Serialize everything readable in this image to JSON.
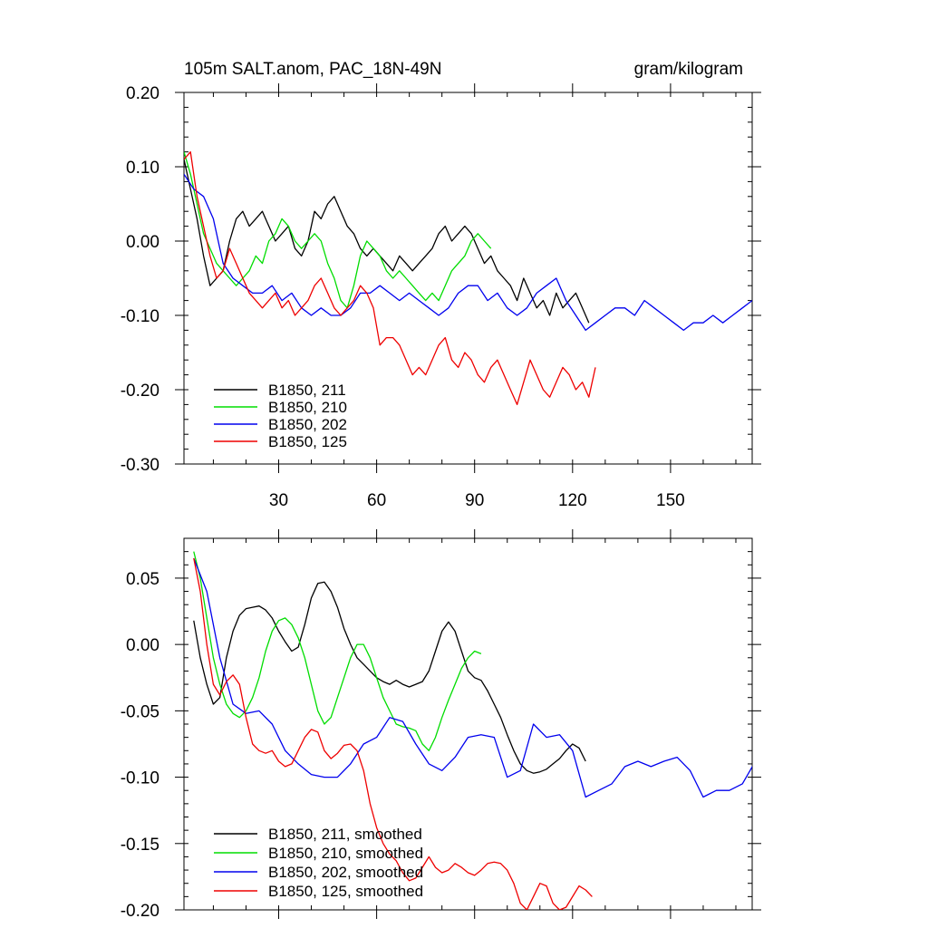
{
  "chart_data": [
    {
      "type": "line",
      "title_left": "105m SALT.anom, PAC_18N-49N",
      "title_right": "gram/kilogram",
      "xlim": [
        1,
        175
      ],
      "ylim": [
        -0.3,
        0.2
      ],
      "xticks": [
        30,
        60,
        90,
        120,
        150
      ],
      "xtick_labels": [
        "30",
        "60",
        "90",
        "120",
        "150"
      ],
      "yticks": [
        0.2,
        0.1,
        0.0,
        -0.1,
        -0.2,
        -0.3
      ],
      "ytick_labels": [
        "0.20",
        "0.10",
        "0.00",
        "-0.10",
        "-0.20",
        "-0.30"
      ],
      "legend_position": "bottom-left",
      "series": [
        {
          "name": "B1850, 211",
          "color": "#000000",
          "x": [
            1,
            3,
            5,
            7,
            9,
            11,
            13,
            15,
            17,
            19,
            21,
            23,
            25,
            27,
            29,
            31,
            33,
            35,
            37,
            39,
            41,
            43,
            45,
            47,
            49,
            51,
            53,
            55,
            57,
            59,
            61,
            63,
            65,
            67,
            69,
            71,
            73,
            75,
            77,
            79,
            81,
            83,
            85,
            87,
            89,
            91,
            93,
            95,
            97,
            99,
            101,
            103,
            105,
            107,
            109,
            111,
            113,
            115,
            117,
            119,
            121,
            123,
            125
          ],
          "y": [
            0.11,
            0.07,
            0.03,
            -0.02,
            -0.06,
            -0.05,
            -0.04,
            0.0,
            0.03,
            0.04,
            0.02,
            0.03,
            0.04,
            0.02,
            0.0,
            0.01,
            0.02,
            -0.01,
            -0.02,
            0.0,
            0.04,
            0.03,
            0.05,
            0.06,
            0.04,
            0.02,
            0.01,
            -0.01,
            -0.02,
            -0.01,
            -0.02,
            -0.03,
            -0.04,
            -0.02,
            -0.03,
            -0.04,
            -0.03,
            -0.02,
            -0.01,
            0.01,
            0.02,
            0.0,
            0.01,
            0.02,
            0.01,
            -0.01,
            -0.03,
            -0.02,
            -0.04,
            -0.05,
            -0.06,
            -0.08,
            -0.05,
            -0.07,
            -0.09,
            -0.08,
            -0.1,
            -0.07,
            -0.09,
            -0.08,
            -0.07,
            -0.09,
            -0.11
          ]
        },
        {
          "name": "B1850, 210",
          "color": "#00dd00",
          "x": [
            1,
            3,
            5,
            7,
            9,
            11,
            13,
            15,
            17,
            19,
            21,
            23,
            25,
            27,
            29,
            31,
            33,
            35,
            37,
            39,
            41,
            43,
            45,
            47,
            49,
            51,
            53,
            55,
            57,
            59,
            61,
            63,
            65,
            67,
            69,
            71,
            73,
            75,
            77,
            79,
            81,
            83,
            85,
            87,
            89,
            91,
            93,
            95
          ],
          "y": [
            0.12,
            0.09,
            0.05,
            0.01,
            -0.01,
            -0.03,
            -0.04,
            -0.05,
            -0.06,
            -0.05,
            -0.04,
            -0.02,
            -0.03,
            0.0,
            0.01,
            0.03,
            0.02,
            0.0,
            -0.01,
            0.0,
            0.01,
            0.0,
            -0.03,
            -0.05,
            -0.08,
            -0.09,
            -0.06,
            -0.02,
            0.0,
            -0.01,
            -0.02,
            -0.04,
            -0.05,
            -0.04,
            -0.05,
            -0.06,
            -0.07,
            -0.08,
            -0.07,
            -0.08,
            -0.06,
            -0.04,
            -0.03,
            -0.02,
            0.0,
            0.01,
            0.0,
            -0.01
          ]
        },
        {
          "name": "B1850, 202",
          "color": "#0000ee",
          "x": [
            1,
            4,
            7,
            10,
            13,
            16,
            19,
            22,
            25,
            28,
            31,
            34,
            37,
            40,
            43,
            46,
            49,
            52,
            55,
            58,
            61,
            64,
            67,
            70,
            73,
            76,
            79,
            82,
            85,
            88,
            91,
            94,
            97,
            100,
            103,
            106,
            109,
            112,
            115,
            118,
            121,
            124,
            127,
            130,
            133,
            136,
            139,
            142,
            145,
            148,
            151,
            154,
            157,
            160,
            163,
            166,
            169,
            172,
            175
          ],
          "y": [
            0.09,
            0.07,
            0.06,
            0.03,
            -0.03,
            -0.05,
            -0.06,
            -0.07,
            -0.07,
            -0.06,
            -0.08,
            -0.07,
            -0.09,
            -0.1,
            -0.09,
            -0.1,
            -0.1,
            -0.09,
            -0.07,
            -0.07,
            -0.06,
            -0.07,
            -0.08,
            -0.07,
            -0.08,
            -0.09,
            -0.1,
            -0.09,
            -0.07,
            -0.06,
            -0.06,
            -0.08,
            -0.07,
            -0.09,
            -0.1,
            -0.09,
            -0.07,
            -0.06,
            -0.05,
            -0.08,
            -0.1,
            -0.12,
            -0.11,
            -0.1,
            -0.09,
            -0.09,
            -0.1,
            -0.08,
            -0.09,
            -0.1,
            -0.11,
            -0.12,
            -0.11,
            -0.11,
            -0.1,
            -0.11,
            -0.1,
            -0.09,
            -0.08
          ]
        },
        {
          "name": "B1850, 125",
          "color": "#ee0000",
          "x": [
            1,
            3,
            5,
            7,
            9,
            11,
            13,
            15,
            17,
            19,
            21,
            23,
            25,
            27,
            29,
            31,
            33,
            35,
            37,
            39,
            41,
            43,
            45,
            47,
            49,
            51,
            53,
            55,
            57,
            59,
            61,
            63,
            65,
            67,
            69,
            71,
            73,
            75,
            77,
            79,
            81,
            83,
            85,
            87,
            89,
            91,
            93,
            95,
            97,
            99,
            101,
            103,
            105,
            107,
            109,
            111,
            113,
            115,
            117,
            119,
            121,
            123,
            125,
            127
          ],
          "y": [
            0.11,
            0.12,
            0.06,
            0.02,
            -0.02,
            -0.05,
            -0.04,
            -0.01,
            -0.03,
            -0.05,
            -0.07,
            -0.08,
            -0.09,
            -0.08,
            -0.07,
            -0.09,
            -0.08,
            -0.1,
            -0.09,
            -0.08,
            -0.06,
            -0.05,
            -0.07,
            -0.09,
            -0.1,
            -0.09,
            -0.08,
            -0.06,
            -0.07,
            -0.09,
            -0.14,
            -0.13,
            -0.13,
            -0.14,
            -0.16,
            -0.18,
            -0.17,
            -0.18,
            -0.16,
            -0.14,
            -0.13,
            -0.16,
            -0.17,
            -0.15,
            -0.16,
            -0.18,
            -0.19,
            -0.17,
            -0.16,
            -0.18,
            -0.2,
            -0.22,
            -0.19,
            -0.16,
            -0.18,
            -0.2,
            -0.21,
            -0.19,
            -0.17,
            -0.18,
            -0.2,
            -0.19,
            -0.21,
            -0.17
          ]
        }
      ]
    },
    {
      "type": "line",
      "xlim": [
        1,
        175
      ],
      "ylim": [
        -0.2,
        0.08
      ],
      "xticks": [
        30,
        60,
        90,
        120,
        150
      ],
      "yticks": [
        0.05,
        0.0,
        -0.05,
        -0.1,
        -0.15,
        -0.2
      ],
      "ytick_labels": [
        "0.05",
        "0.00",
        "-0.05",
        "-0.10",
        "-0.15",
        "-0.20"
      ],
      "legend_position": "bottom-left",
      "series": [
        {
          "name": "B1850, 211, smoothed",
          "color": "#000000",
          "x": [
            4,
            6,
            8,
            10,
            12,
            14,
            16,
            18,
            20,
            22,
            24,
            26,
            28,
            30,
            32,
            34,
            36,
            38,
            40,
            42,
            44,
            46,
            48,
            50,
            52,
            54,
            56,
            58,
            60,
            62,
            64,
            66,
            68,
            70,
            72,
            74,
            76,
            78,
            80,
            82,
            84,
            86,
            88,
            90,
            92,
            94,
            96,
            98,
            100,
            102,
            104,
            106,
            108,
            110,
            112,
            114,
            116,
            118,
            120,
            122,
            124
          ],
          "y": [
            0.018,
            -0.01,
            -0.03,
            -0.045,
            -0.04,
            -0.01,
            0.01,
            0.022,
            0.027,
            0.028,
            0.029,
            0.026,
            0.02,
            0.01,
            0.002,
            -0.005,
            -0.002,
            0.015,
            0.035,
            0.046,
            0.047,
            0.04,
            0.028,
            0.012,
            0.0,
            -0.01,
            -0.015,
            -0.02,
            -0.025,
            -0.028,
            -0.03,
            -0.027,
            -0.03,
            -0.032,
            -0.03,
            -0.028,
            -0.02,
            -0.005,
            0.01,
            0.017,
            0.01,
            -0.005,
            -0.02,
            -0.025,
            -0.027,
            -0.035,
            -0.045,
            -0.055,
            -0.068,
            -0.08,
            -0.09,
            -0.095,
            -0.097,
            -0.096,
            -0.094,
            -0.09,
            -0.086,
            -0.08,
            -0.075,
            -0.078,
            -0.088
          ]
        },
        {
          "name": "B1850, 210, smoothed",
          "color": "#00dd00",
          "x": [
            4,
            6,
            8,
            10,
            12,
            14,
            16,
            18,
            20,
            22,
            24,
            26,
            28,
            30,
            32,
            34,
            36,
            38,
            40,
            42,
            44,
            46,
            48,
            50,
            52,
            54,
            56,
            58,
            60,
            62,
            64,
            66,
            68,
            70,
            72,
            74,
            76,
            78,
            80,
            82,
            84,
            86,
            88,
            90,
            92
          ],
          "y": [
            0.07,
            0.05,
            0.02,
            -0.01,
            -0.03,
            -0.045,
            -0.052,
            -0.055,
            -0.05,
            -0.04,
            -0.025,
            -0.005,
            0.01,
            0.018,
            0.02,
            0.015,
            0.005,
            -0.01,
            -0.03,
            -0.05,
            -0.06,
            -0.055,
            -0.04,
            -0.025,
            -0.01,
            0.0,
            0.0,
            -0.01,
            -0.025,
            -0.04,
            -0.05,
            -0.06,
            -0.062,
            -0.063,
            -0.065,
            -0.075,
            -0.08,
            -0.07,
            -0.055,
            -0.042,
            -0.03,
            -0.018,
            -0.01,
            -0.005,
            -0.007
          ]
        },
        {
          "name": "B1850, 202, smoothed",
          "color": "#0000ee",
          "x": [
            4,
            8,
            12,
            16,
            20,
            24,
            28,
            32,
            36,
            40,
            44,
            48,
            52,
            56,
            60,
            64,
            68,
            72,
            76,
            80,
            84,
            88,
            92,
            96,
            100,
            104,
            108,
            112,
            116,
            120,
            124,
            128,
            132,
            136,
            140,
            144,
            148,
            152,
            156,
            160,
            164,
            168,
            172,
            176
          ],
          "y": [
            0.065,
            0.04,
            -0.01,
            -0.045,
            -0.052,
            -0.05,
            -0.06,
            -0.08,
            -0.09,
            -0.098,
            -0.1,
            -0.1,
            -0.09,
            -0.075,
            -0.07,
            -0.055,
            -0.058,
            -0.075,
            -0.09,
            -0.095,
            -0.085,
            -0.07,
            -0.068,
            -0.07,
            -0.1,
            -0.095,
            -0.06,
            -0.07,
            -0.068,
            -0.08,
            -0.115,
            -0.11,
            -0.105,
            -0.092,
            -0.088,
            -0.092,
            -0.088,
            -0.085,
            -0.095,
            -0.115,
            -0.11,
            -0.11,
            -0.105,
            -0.088
          ]
        },
        {
          "name": "B1850, 125, smoothed",
          "color": "#ee0000",
          "x": [
            4,
            6,
            8,
            10,
            12,
            14,
            16,
            18,
            20,
            22,
            24,
            26,
            28,
            30,
            32,
            34,
            36,
            38,
            40,
            42,
            44,
            46,
            48,
            50,
            52,
            54,
            56,
            58,
            60,
            62,
            64,
            66,
            68,
            70,
            72,
            74,
            76,
            78,
            80,
            82,
            84,
            86,
            88,
            90,
            92,
            94,
            96,
            98,
            100,
            102,
            104,
            106,
            108,
            110,
            112,
            114,
            116,
            118,
            120,
            122,
            124,
            126
          ],
          "y": [
            0.065,
            0.04,
            0.0,
            -0.03,
            -0.038,
            -0.028,
            -0.023,
            -0.03,
            -0.055,
            -0.075,
            -0.08,
            -0.082,
            -0.08,
            -0.088,
            -0.092,
            -0.09,
            -0.08,
            -0.07,
            -0.064,
            -0.066,
            -0.08,
            -0.086,
            -0.082,
            -0.076,
            -0.075,
            -0.08,
            -0.095,
            -0.12,
            -0.138,
            -0.15,
            -0.158,
            -0.163,
            -0.172,
            -0.178,
            -0.176,
            -0.168,
            -0.16,
            -0.168,
            -0.172,
            -0.17,
            -0.165,
            -0.168,
            -0.172,
            -0.174,
            -0.17,
            -0.165,
            -0.164,
            -0.165,
            -0.17,
            -0.18,
            -0.195,
            -0.2,
            -0.19,
            -0.18,
            -0.182,
            -0.195,
            -0.2,
            -0.198,
            -0.19,
            -0.182,
            -0.185,
            -0.19
          ]
        }
      ]
    }
  ]
}
